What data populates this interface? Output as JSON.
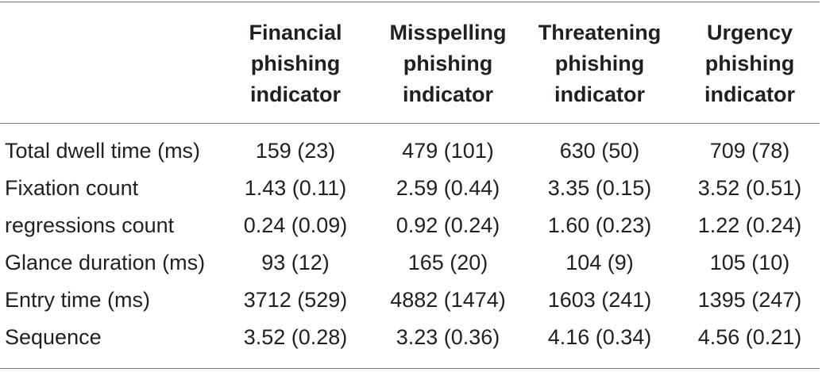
{
  "table": {
    "columns": [
      {
        "lines": [
          "Financial",
          "phishing",
          "indicator"
        ]
      },
      {
        "lines": [
          "Misspelling",
          "phishing",
          "indicator"
        ]
      },
      {
        "lines": [
          "Threatening",
          "phishing",
          "indicator"
        ]
      },
      {
        "lines": [
          "Urgency",
          "phishing",
          "indicator"
        ]
      }
    ],
    "rows": [
      {
        "label": "Total dwell time (ms)",
        "values": [
          "159 (23)",
          "479 (101)",
          "630 (50)",
          "709 (78)"
        ]
      },
      {
        "label": "Fixation count",
        "values": [
          "1.43 (0.11)",
          "2.59 (0.44)",
          "3.35 (0.15)",
          "3.52 (0.51)"
        ]
      },
      {
        "label": "regressions count",
        "values": [
          "0.24 (0.09)",
          "0.92 (0.24)",
          "1.60 (0.23)",
          "1.22 (0.24)"
        ]
      },
      {
        "label": "Glance duration (ms)",
        "values": [
          "93 (12)",
          "165 (20)",
          "104 (9)",
          "105 (10)"
        ]
      },
      {
        "label": "Entry time (ms)",
        "values": [
          "3712 (529)",
          "4882 (1474)",
          "1603 (241)",
          "1395 (247)"
        ]
      },
      {
        "label": "Sequence",
        "values": [
          "3.52 (0.28)",
          "3.23 (0.36)",
          "4.16 (0.34)",
          "4.56 (0.21)"
        ]
      }
    ]
  }
}
